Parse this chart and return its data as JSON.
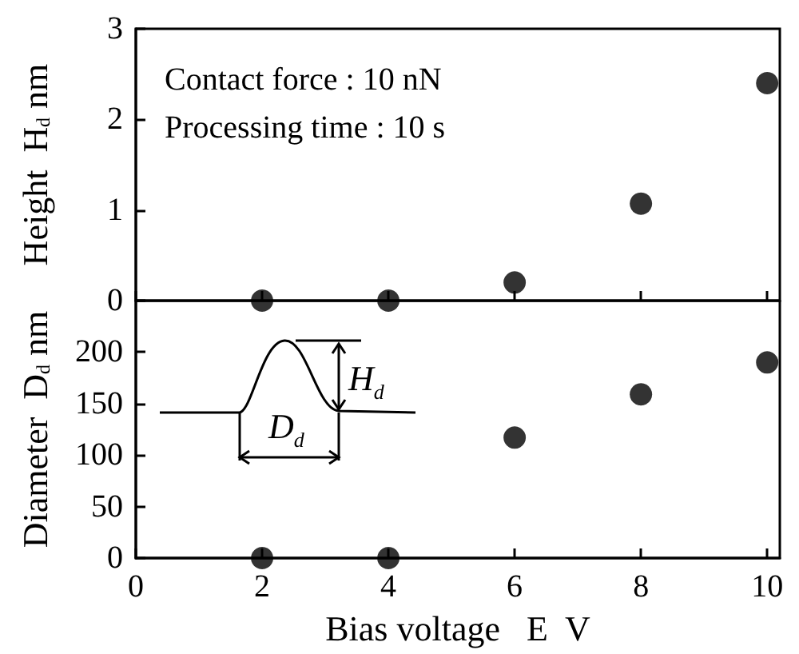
{
  "chart_data": [
    {
      "type": "scatter",
      "ylabel": "Height  H$_{d}$ nm",
      "x": [
        2,
        4,
        6,
        8,
        10
      ],
      "xlim": [
        0,
        10.2
      ],
      "xticks": [
        0,
        2,
        4,
        6,
        8,
        10
      ],
      "ylim": [
        0,
        3
      ],
      "yticks": [
        0,
        1,
        2,
        3
      ],
      "series": [
        {
          "color": "#000000",
          "values": [
            0,
            0,
            0.2,
            1.07,
            2.4
          ]
        }
      ],
      "marker": "circle",
      "grid": false,
      "tick_labels": "y",
      "annotations": [
        "Contact force : 10 nN",
        "Processing time : 10 s"
      ]
    },
    {
      "type": "scatter",
      "xlabel": "Bias voltage   E  V",
      "ylabel": "Diameter  D$_{d}$ nm",
      "x": [
        2,
        4,
        6,
        8,
        10
      ],
      "xlim": [
        0,
        10.2
      ],
      "xticks": [
        0,
        2,
        4,
        6,
        8,
        10
      ],
      "ylim": [
        0,
        250
      ],
      "yticks": [
        0,
        50,
        100,
        150,
        200,
        {
          "value": 250,
          "label": null
        }
      ],
      "series": [
        {
          "color": "#000000",
          "values": [
            0,
            0,
            117,
            159,
            190
          ]
        }
      ],
      "marker": "circle",
      "grid": false,
      "annotations": [
        "H$_{d}$",
        "D$_{d}$"
      ]
    }
  ]
}
